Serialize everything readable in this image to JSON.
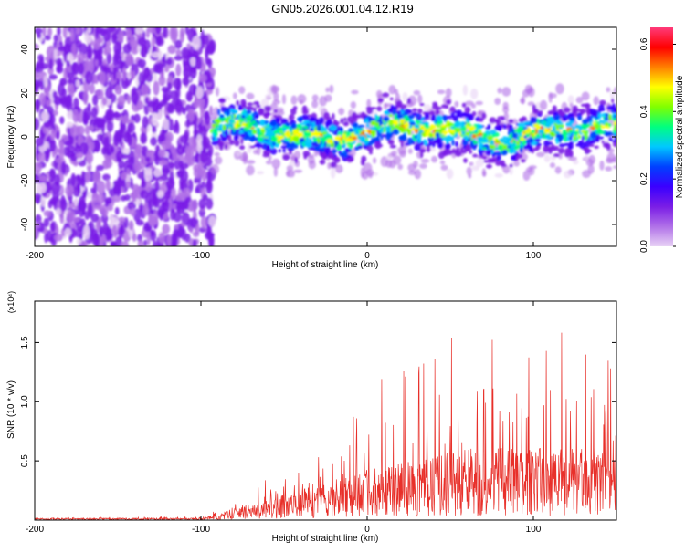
{
  "title": "GN05.2026.001.04.12.R19",
  "chart_data": [
    {
      "type": "heatmap",
      "name": "spectrogram",
      "xlabel": "Height of straight line (km)",
      "ylabel": "Frequency (Hz)",
      "xlim": [
        -200,
        150
      ],
      "ylim": [
        -50,
        50
      ],
      "xticks": [
        -200,
        -100,
        0,
        100
      ],
      "yticks": [
        -40,
        -20,
        0,
        20,
        40
      ],
      "colorbar": {
        "label": "Normalized spectral amplitude",
        "range": [
          0.0,
          0.65
        ],
        "ticks": [
          0.0,
          0.2,
          0.4,
          0.6
        ],
        "colors": [
          "#e8d2f5",
          "#b070e8",
          "#7a1de6",
          "#3a00ff",
          "#0040ff",
          "#00c8ff",
          "#00ff80",
          "#80ff00",
          "#ffff00",
          "#ff8000",
          "#ff0000",
          "#ff3a7a"
        ]
      },
      "regions": [
        {
          "x_range": [
            -200,
            -93
          ],
          "freq_range": [
            -50,
            50
          ],
          "amplitude": "low, 0.1-0.2 (noise)"
        },
        {
          "x_range": [
            -93,
            150
          ],
          "freq_center": 2,
          "freq_halfwidth": 8,
          "amplitude": "0.2-0.6 (signal band)"
        }
      ]
    },
    {
      "type": "line",
      "name": "snr",
      "xlabel": "Height of straight line (km)",
      "ylabel": "SNR (10 * v/v)",
      "multiplier": "(x10⁴)",
      "xlim": [
        -200,
        150
      ],
      "ylim": [
        0,
        1.85
      ],
      "xticks": [
        -200,
        -100,
        0,
        100
      ],
      "yticks": [
        0.5,
        1.0,
        1.5
      ],
      "ytick_labels": [
        "0.5",
        "1.0",
        "1.5"
      ],
      "color": "#e8302a",
      "envelope": {
        "x": [
          -200,
          -100,
          -90,
          -80,
          -60,
          -40,
          -20,
          0,
          20,
          40,
          60,
          80,
          100,
          120,
          140,
          150
        ],
        "mean": [
          0.01,
          0.01,
          0.03,
          0.06,
          0.1,
          0.15,
          0.2,
          0.25,
          0.28,
          0.32,
          0.36,
          0.36,
          0.36,
          0.36,
          0.36,
          0.34
        ],
        "peak": [
          0.02,
          0.03,
          0.1,
          0.15,
          0.35,
          0.45,
          0.75,
          1.1,
          1.45,
          1.5,
          1.85,
          1.7,
          1.55,
          1.75,
          1.62,
          1.5
        ]
      }
    }
  ]
}
